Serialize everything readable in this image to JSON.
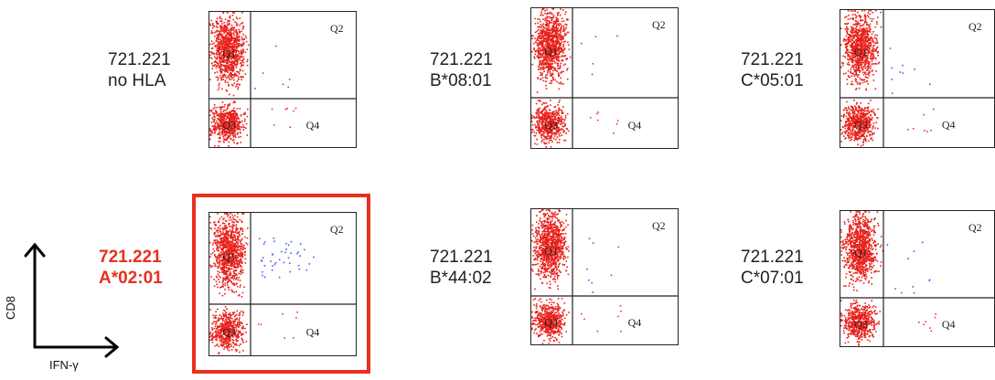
{
  "panels": [
    {
      "id": "no-hla",
      "line1": "721.221",
      "line2": "no HLA",
      "highlight": false,
      "q1": "Q1",
      "q2": "Q2",
      "q3": "Q3",
      "q4": "Q4"
    },
    {
      "id": "b0801",
      "line1": "721.221",
      "line2": "B*08:01",
      "highlight": false,
      "q1": "Q1",
      "q2": "Q2",
      "q3": "Q3",
      "q4": "Q4"
    },
    {
      "id": "c0501",
      "line1": "721.221",
      "line2": "C*05:01",
      "highlight": false,
      "q1": "Q1",
      "q2": "Q2",
      "q3": "Q3",
      "q4": "Q4"
    },
    {
      "id": "a0201",
      "line1": "721.221",
      "line2": "A*02:01",
      "highlight": true,
      "q1": "Q1",
      "q2": "Q2",
      "q3": "Q3",
      "q4": "Q4"
    },
    {
      "id": "b4402",
      "line1": "721.221",
      "line2": "B*44:02",
      "highlight": false,
      "q1": "Q1",
      "q2": "Q2",
      "q3": "Q3",
      "q4": "Q4"
    },
    {
      "id": "c0701",
      "line1": "721.221",
      "line2": "C*07:01",
      "highlight": false,
      "q1": "Q1",
      "q2": "Q2",
      "q3": "Q3",
      "q4": "Q4"
    }
  ],
  "axes": {
    "y_label": "CD8",
    "x_label": "IFN-γ"
  },
  "colors": {
    "dots": "#e8201a",
    "positive": "#4a5cf0",
    "highlight": "#e8301e"
  }
}
